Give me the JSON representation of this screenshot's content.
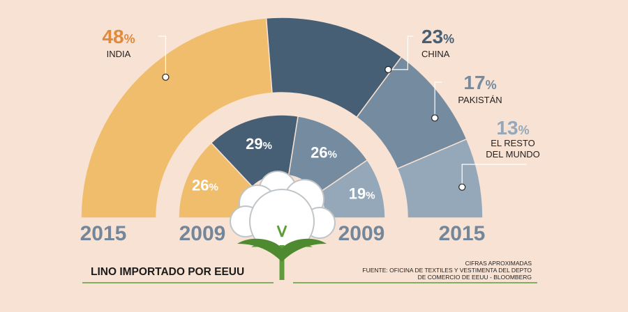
{
  "chart_data": {
    "type": "pie",
    "title": "LINO IMPORTADO POR EEUU",
    "series": [
      {
        "name": "2015",
        "slices": [
          {
            "label": "INDIA",
            "label_lines": [
              "INDIA"
            ],
            "value": 48,
            "display": "48%",
            "color": "#f0bd6c",
            "label_color": "#e08a3c"
          },
          {
            "label": "CHINA",
            "label_lines": [
              "CHINA"
            ],
            "value": 23,
            "display": "23%",
            "color": "#465f75",
            "label_color": "#465f75"
          },
          {
            "label": "PAKISTÁN",
            "label_lines": [
              "PAKISTÁN"
            ],
            "value": 17,
            "display": "17%",
            "color": "#748ba0",
            "label_color": "#748ba0"
          },
          {
            "label": "EL RESTO DEL MUNDO",
            "label_lines": [
              "EL RESTO",
              "DEL MUNDO"
            ],
            "value": 13,
            "display": "13%",
            "color": "#95a8b9",
            "label_color": "#95a8b9"
          }
        ]
      },
      {
        "name": "2009",
        "slices": [
          {
            "label": "INDIA",
            "value": 26,
            "display": "26%",
            "color": "#f0bd6c"
          },
          {
            "label": "CHINA",
            "value": 29,
            "display": "29%",
            "color": "#465f75"
          },
          {
            "label": "PAKISTÁN",
            "value": 26,
            "display": "26%",
            "color": "#748ba0"
          },
          {
            "label": "EL RESTO DEL MUNDO",
            "value": 19,
            "display": "19%",
            "color": "#95a8b9"
          }
        ]
      }
    ],
    "year_labels": [
      "2015",
      "2009",
      "2009",
      "2015"
    ],
    "source_lines": [
      "CIFRAS APROXIMADAS",
      "FUENTE: OFICINA DE TEXTILES Y VESTIMENTA DEL DEPTO",
      "DE COMERCIO DE EEUU -  BLOOMBERG"
    ],
    "colors": {
      "background": "#f8e2d3",
      "rule": "#5a9a3a",
      "year": "#74869a",
      "cotton": "#ffffff",
      "leaf": "#5f9d3c"
    },
    "icon": "cotton-flower-icon"
  }
}
